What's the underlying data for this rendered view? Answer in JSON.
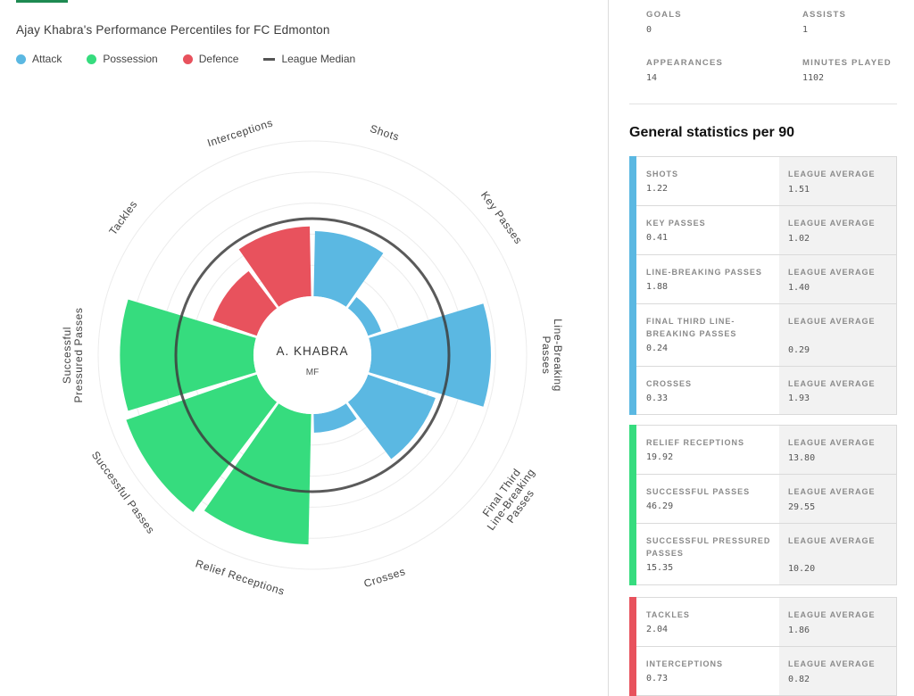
{
  "page": {
    "title": "Ajay Khabra's Performance Percentiles for FC Edmonton"
  },
  "legend": [
    {
      "label": "Attack",
      "color": "#5bb8e2"
    },
    {
      "label": "Possession",
      "color": "#36dc7e"
    },
    {
      "label": "Defence",
      "color": "#e8525d"
    },
    {
      "label": "League Median",
      "color": "#555555"
    }
  ],
  "chart_data": {
    "type": "polar-bar",
    "center_label": "A. KHABRA",
    "center_sublabel": "MF",
    "range": [
      0,
      100
    ],
    "median_percentile": 50,
    "categories": [
      {
        "label": "Shots",
        "group": "Attack",
        "percentile": 42
      },
      {
        "label": "Key Passes",
        "group": "Attack",
        "percentile": 9
      },
      {
        "label": "Line-Breaking Passes",
        "group": "Attack",
        "percentile": 77
      },
      {
        "label": "Final Third Line-Breaking Passes",
        "group": "Attack",
        "percentile": 46
      },
      {
        "label": "Crosses",
        "group": "Attack",
        "percentile": 12
      },
      {
        "label": "Relief Receptions",
        "group": "Possession",
        "percentile": 84
      },
      {
        "label": "Successful Passes",
        "group": "Possession",
        "percentile": 89
      },
      {
        "label": "Successful Pressured Passes",
        "group": "Possession",
        "percentile": 86
      },
      {
        "label": "Tackles",
        "group": "Defence",
        "percentile": 30
      },
      {
        "label": "Interceptions",
        "group": "Defence",
        "percentile": 45
      }
    ],
    "grid": true
  },
  "summary": {
    "goals_label": "GOALS",
    "goals": "0",
    "assists_label": "ASSISTS",
    "assists": "1",
    "appearances_label": "APPEARANCES",
    "appearances": "14",
    "minutes_label": "MINUTES PLAYED",
    "minutes": "1102"
  },
  "stats_section": {
    "title": "General statistics per 90",
    "avg_label": "LEAGUE AVERAGE",
    "groups": [
      {
        "color": "#5bb8e2",
        "rows": [
          {
            "label": "SHOTS",
            "value": "1.22",
            "avg": "1.51"
          },
          {
            "label": "KEY PASSES",
            "value": "0.41",
            "avg": "1.02"
          },
          {
            "label": "LINE-BREAKING PASSES",
            "value": "1.88",
            "avg": "1.40"
          },
          {
            "label": "FINAL THIRD LINE-BREAKING PASSES",
            "value": "0.24",
            "avg": "0.29"
          },
          {
            "label": "CROSSES",
            "value": "0.33",
            "avg": "1.93"
          }
        ]
      },
      {
        "color": "#36dc7e",
        "rows": [
          {
            "label": "RELIEF RECEPTIONS",
            "value": "19.92",
            "avg": "13.80"
          },
          {
            "label": "SUCCESSFUL PASSES",
            "value": "46.29",
            "avg": "29.55"
          },
          {
            "label": "SUCCESSFUL PRESSURED PASSES",
            "value": "15.35",
            "avg": "10.20"
          }
        ]
      },
      {
        "color": "#e8525d",
        "rows": [
          {
            "label": "TACKLES",
            "value": "2.04",
            "avg": "1.86"
          },
          {
            "label": "INTERCEPTIONS",
            "value": "0.73",
            "avg": "0.82"
          }
        ]
      }
    ]
  }
}
